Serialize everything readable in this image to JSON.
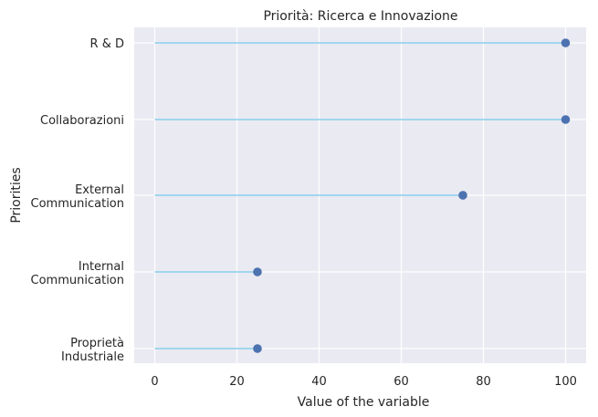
{
  "chart_data": {
    "type": "lollipop",
    "title": "Priorità: Ricerca e Innovazione",
    "xlabel": "Value of the variable",
    "ylabel": "Priorities",
    "xlim": [
      -5,
      105
    ],
    "xticks": [
      0,
      20,
      40,
      60,
      80,
      100
    ],
    "grid": true,
    "categories": [
      [
        "R & D"
      ],
      [
        "Collaborazioni"
      ],
      [
        "External",
        "Communication"
      ],
      [
        "Internal",
        "Communication"
      ],
      [
        "Proprietà",
        "Industriale"
      ]
    ],
    "values": [
      100,
      100,
      75,
      25,
      25
    ],
    "colors": {
      "background": "#eaeaf2",
      "grid": "#ffffff",
      "stem": "#87ceeb",
      "marker": "#4c72b0"
    }
  }
}
